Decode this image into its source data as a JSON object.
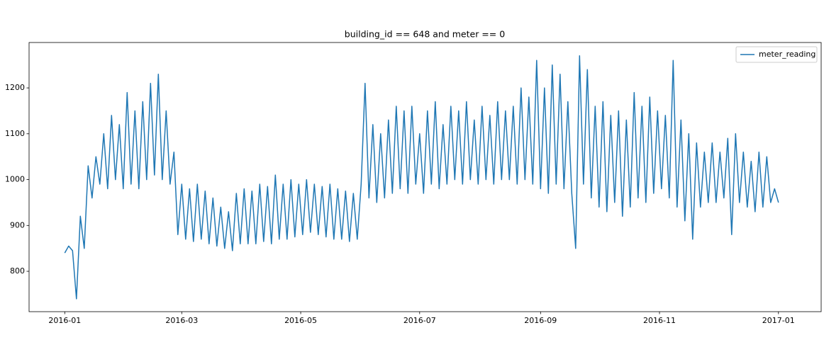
{
  "chart_data": {
    "type": "line",
    "title": "building_id == 648 and meter == 0",
    "x": [
      0,
      2,
      4,
      6,
      8,
      10,
      12,
      14,
      16,
      18,
      20,
      22,
      24,
      26,
      28,
      30,
      32,
      34,
      36,
      38,
      40,
      42,
      44,
      46,
      48,
      50,
      52,
      54,
      56,
      58,
      60,
      62,
      64,
      66,
      68,
      70,
      72,
      74,
      76,
      78,
      80,
      82,
      84,
      86,
      88,
      90,
      92,
      94,
      96,
      98,
      100,
      102,
      104,
      106,
      108,
      110,
      112,
      114,
      116,
      118,
      120,
      122,
      124,
      126,
      128,
      130,
      132,
      134,
      136,
      138,
      140,
      142,
      144,
      146,
      148,
      150,
      152,
      154,
      156,
      158,
      160,
      162,
      164,
      166,
      168,
      170,
      172,
      174,
      176,
      178,
      180,
      182,
      184,
      186,
      188,
      190,
      192,
      194,
      196,
      198,
      200,
      202,
      204,
      206,
      208,
      210,
      212,
      214,
      216,
      218,
      220,
      222,
      224,
      226,
      228,
      230,
      232,
      234,
      236,
      238,
      240,
      242,
      244,
      246,
      248,
      250,
      252,
      254,
      256,
      258,
      260,
      262,
      264,
      266,
      268,
      270,
      272,
      274,
      276,
      278,
      280,
      282,
      284,
      286,
      288,
      290,
      292,
      294,
      296,
      298,
      300,
      302,
      304,
      306,
      308,
      310,
      312,
      314,
      316,
      318,
      320,
      322,
      324,
      326,
      328,
      330,
      332,
      334,
      336,
      338,
      340,
      342,
      344,
      346,
      348,
      350,
      352,
      354,
      356,
      358,
      360,
      362,
      364,
      366
    ],
    "series": [
      {
        "name": "meter_reading",
        "color": "#1f77b4",
        "values": [
          840,
          855,
          845,
          740,
          920,
          850,
          1030,
          960,
          1050,
          990,
          1100,
          980,
          1140,
          1000,
          1120,
          980,
          1190,
          990,
          1150,
          980,
          1170,
          1000,
          1210,
          1010,
          1230,
          1000,
          1150,
          990,
          1060,
          880,
          990,
          870,
          980,
          865,
          990,
          870,
          975,
          860,
          960,
          855,
          940,
          850,
          930,
          845,
          970,
          860,
          980,
          860,
          975,
          860,
          990,
          865,
          985,
          860,
          1010,
          870,
          990,
          870,
          1000,
          875,
          990,
          880,
          1000,
          885,
          990,
          880,
          985,
          875,
          990,
          870,
          980,
          870,
          975,
          865,
          970,
          870,
          990,
          1210,
          960,
          1120,
          950,
          1100,
          960,
          1130,
          970,
          1160,
          980,
          1150,
          970,
          1160,
          990,
          1100,
          970,
          1150,
          990,
          1170,
          980,
          1120,
          990,
          1160,
          1000,
          1150,
          990,
          1170,
          1000,
          1130,
          990,
          1160,
          1000,
          1140,
          990,
          1170,
          1000,
          1150,
          1000,
          1160,
          990,
          1200,
          1000,
          1180,
          990,
          1260,
          980,
          1200,
          970,
          1250,
          990,
          1230,
          980,
          1170,
          970,
          850,
          1270,
          990,
          1240,
          960,
          1160,
          940,
          1170,
          930,
          1140,
          950,
          1150,
          920,
          1130,
          940,
          1190,
          960,
          1160,
          950,
          1180,
          970,
          1150,
          980,
          1140,
          960,
          1260,
          940,
          1130,
          910,
          1100,
          870,
          1080,
          940,
          1060,
          950,
          1080,
          950,
          1060,
          960,
          1090,
          880,
          1100,
          950,
          1060,
          940,
          1040,
          930,
          1060,
          940,
          1050,
          950,
          980,
          950
        ]
      }
    ],
    "xlim": [
      -18.3,
      387.9
    ],
    "xticks": [
      {
        "value": 0,
        "label": "2016-01"
      },
      {
        "value": 60,
        "label": "2016-03"
      },
      {
        "value": 121,
        "label": "2016-05"
      },
      {
        "value": 182,
        "label": "2016-07"
      },
      {
        "value": 244,
        "label": "2016-09"
      },
      {
        "value": 305,
        "label": "2016-11"
      },
      {
        "value": 366,
        "label": "2017-01"
      }
    ],
    "ylim": [
      712,
      1299
    ],
    "yticks": [
      800,
      900,
      1000,
      1100,
      1200
    ],
    "legend": "upper right"
  }
}
